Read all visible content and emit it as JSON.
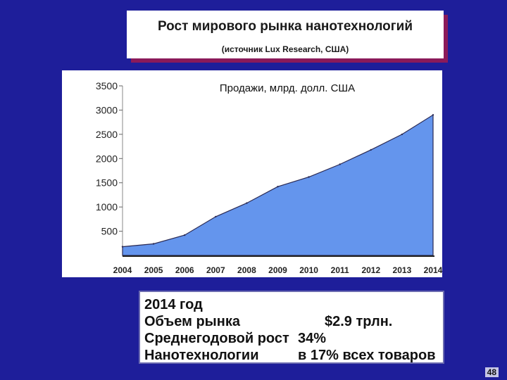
{
  "slide": {
    "title": "Рост мирового рынка нанотехнологий",
    "subtitle": "(источник Lux Research, США)",
    "page_number": "48"
  },
  "chart_data": {
    "type": "area",
    "title": "Продажи, млрд. долл. США",
    "xlabel": "",
    "ylabel": "",
    "x": [
      "2004",
      "2005",
      "2006",
      "2007",
      "2008",
      "2009",
      "2010",
      "2011",
      "2012",
      "2013",
      "2014"
    ],
    "series": [
      {
        "values": [
          180,
          240,
          420,
          800,
          1080,
          1420,
          1620,
          1880,
          2180,
          2500,
          2900
        ]
      }
    ],
    "yticks": [
      500,
      1000,
      1500,
      2000,
      2500,
      3000,
      3500
    ],
    "ylim": [
      0,
      3500
    ],
    "grid": false,
    "fill_color": "#6495ed",
    "line_color": "#2a2a55"
  },
  "info": {
    "year": "2014 год",
    "market_label": "Объем рынка",
    "market_value": "$2.9 трлн.",
    "growth_label": "Среднегодовой рост",
    "growth_value": "34%",
    "nano_label": "Нанотехнологии",
    "nano_value": "в 17% всех товаров"
  }
}
